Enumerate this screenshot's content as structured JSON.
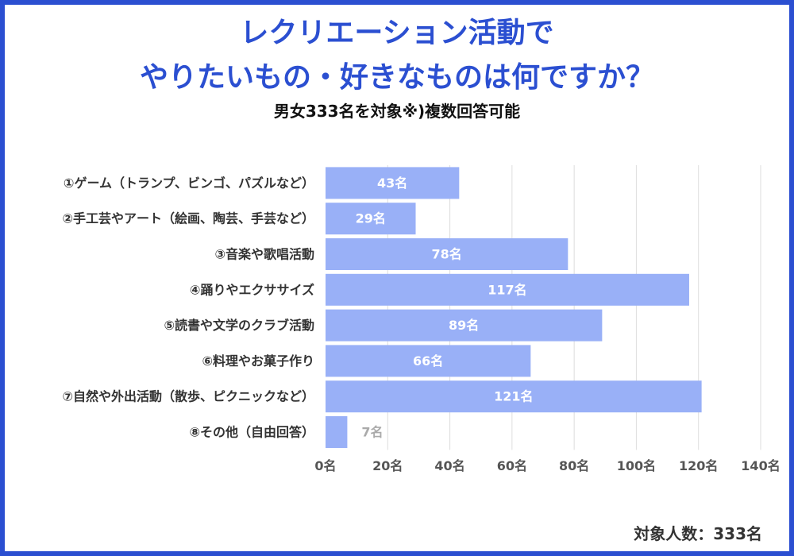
{
  "header": {
    "title_line1": "レクリエーション活動で",
    "title_line2": "やりたいもの・好きなものは何ですか？",
    "subtitle": "男女333名を対象※)複数回答可能"
  },
  "footer": {
    "sample": "対象人数：333名"
  },
  "colors": {
    "border": "#2b4fd1",
    "title": "#2b4fd1",
    "bar": "#99b0f7",
    "grid": "#dddddd",
    "label": "#333333"
  },
  "chart_data": {
    "type": "bar",
    "orientation": "horizontal",
    "categories": [
      "①ゲーム（トランプ、ビンゴ、パズルなど）",
      "②手工芸やアート（絵画、陶芸、手芸など）",
      "③音楽や歌唱活動",
      "④踊りやエクササイズ",
      "⑤読書や文学のクラブ活動",
      "⑥料理やお菓子作り",
      "⑦自然や外出活動（散歩、ピクニックなど）",
      "⑧その他（自由回答）"
    ],
    "values": [
      43,
      29,
      78,
      117,
      89,
      66,
      121,
      7
    ],
    "value_labels": [
      "43名",
      "29名",
      "78名",
      "117名",
      "89名",
      "66名",
      "121名",
      "7名"
    ],
    "xlim": [
      0,
      140
    ],
    "xticks": [
      0,
      20,
      40,
      60,
      80,
      100,
      120,
      140
    ],
    "xtick_labels": [
      "0名",
      "20名",
      "40名",
      "60名",
      "80名",
      "100名",
      "120名",
      "140名"
    ],
    "grid": true
  }
}
